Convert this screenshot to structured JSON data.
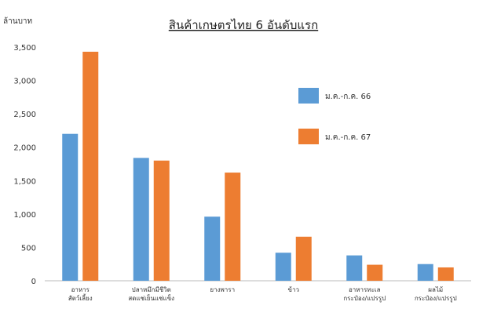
{
  "chart_data": {
    "type": "bar",
    "title": "สินค้าเกษตรไทย 6 อันดับแรก",
    "ylabel": "ล้านบาท",
    "ylim": [
      0,
      3500
    ],
    "yticks": [
      "0",
      "500",
      "1,000",
      "1,500",
      "2,000",
      "2,500",
      "3,000",
      "3,500"
    ],
    "grid": false,
    "legend_position": "right",
    "categories": [
      [
        "อาหาร",
        "สัตว์เลี้ยง"
      ],
      [
        "ปลาหมึกมีชีวิต",
        "สดแช่เย็นแช่แข็ง"
      ],
      [
        "ยางพารา"
      ],
      [
        "ข้าว"
      ],
      [
        "อาหารทะเล",
        "กระป๋อง/แปรรูป"
      ],
      [
        "ผลไม้",
        "กระป๋อง/แปรรูป"
      ]
    ],
    "series": [
      {
        "name": "ม.ค.-ก.ค. 66",
        "color": "#5B9BD5",
        "values": [
          2200,
          1840,
          960,
          420,
          380,
          250
        ]
      },
      {
        "name": "ม.ค.-ก.ค. 67",
        "color": "#ED7D31",
        "values": [
          3430,
          1800,
          1620,
          660,
          240,
          200
        ]
      }
    ]
  }
}
